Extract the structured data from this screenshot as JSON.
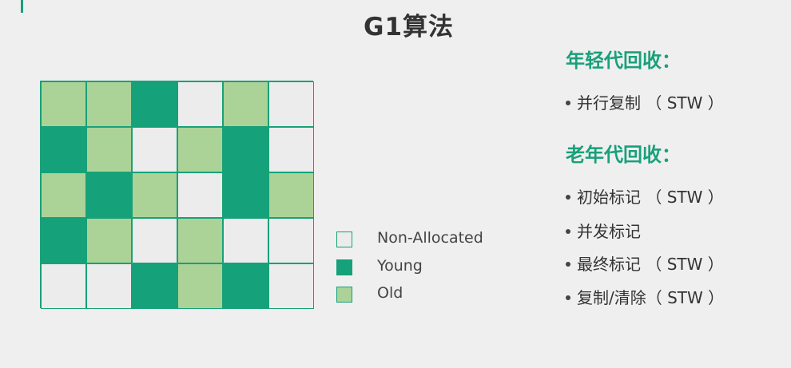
{
  "title": "G1算法",
  "colors": {
    "accent": "#19a07a",
    "non_allocated": "#ececec",
    "young": "#15a17a",
    "old": "#abd398"
  },
  "grid": {
    "rows": [
      [
        "old",
        "old",
        "young",
        "non-allocated",
        "old",
        "non-allocated"
      ],
      [
        "young",
        "old",
        "non-allocated",
        "old",
        "young",
        "non-allocated"
      ],
      [
        "old",
        "young",
        "old",
        "non-allocated",
        "young",
        "old"
      ],
      [
        "young",
        "old",
        "non-allocated",
        "old",
        "non-allocated",
        "non-allocated"
      ],
      [
        "non-allocated",
        "non-allocated",
        "young",
        "old",
        "young",
        "non-allocated"
      ]
    ]
  },
  "legend": {
    "items": [
      {
        "type": "non-allocated",
        "label": "Non-Allocated"
      },
      {
        "type": "young",
        "label": "Young"
      },
      {
        "type": "old",
        "label": "Old"
      }
    ]
  },
  "young_gc": {
    "heading": "年轻代回收：",
    "items": [
      "并行复制 （ STW ）"
    ]
  },
  "old_gc": {
    "heading": "老年代回收：",
    "items": [
      "初始标记 （ STW ）",
      "并发标记",
      "最终标记 （ STW ）",
      "复制/清除（ STW ）"
    ]
  }
}
